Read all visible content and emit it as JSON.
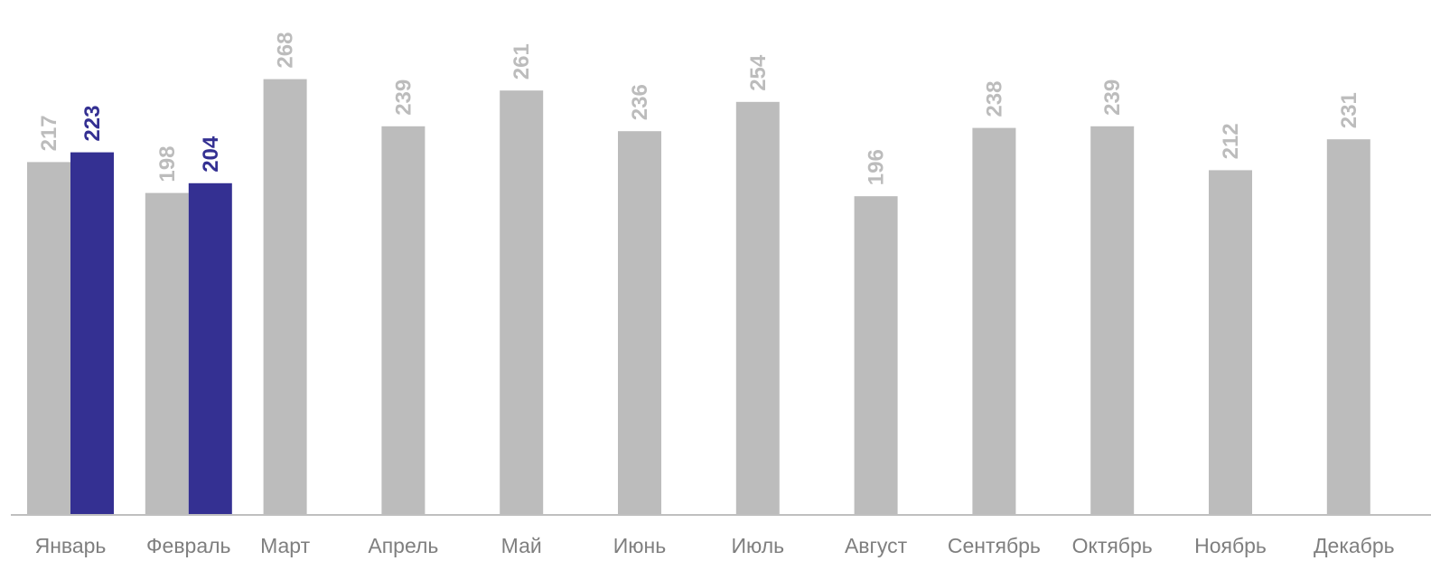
{
  "chart_data": {
    "type": "bar",
    "categories": [
      "Январь",
      "Февраль",
      "Март",
      "Апрель",
      "Май",
      "Июнь",
      "Июль",
      "Август",
      "Сентябрь",
      "Октябрь",
      "Ноябрь",
      "Декабрь"
    ],
    "series": [
      {
        "color": "#bcbcbc",
        "label_color": "#bcbcbc",
        "values": [
          217,
          198,
          268,
          239,
          261,
          236,
          254,
          196,
          238,
          239,
          212,
          231
        ]
      },
      {
        "color": "#343092",
        "label_color": "#343092",
        "values": [
          223,
          204,
          null,
          null,
          null,
          null,
          null,
          null,
          null,
          null,
          null,
          null
        ]
      }
    ],
    "title": "",
    "xlabel": "",
    "ylabel": "",
    "ylim": [
      0,
      280
    ],
    "grid": false,
    "legend": "none",
    "data_labels": "rotated-vertical-above-bars"
  }
}
